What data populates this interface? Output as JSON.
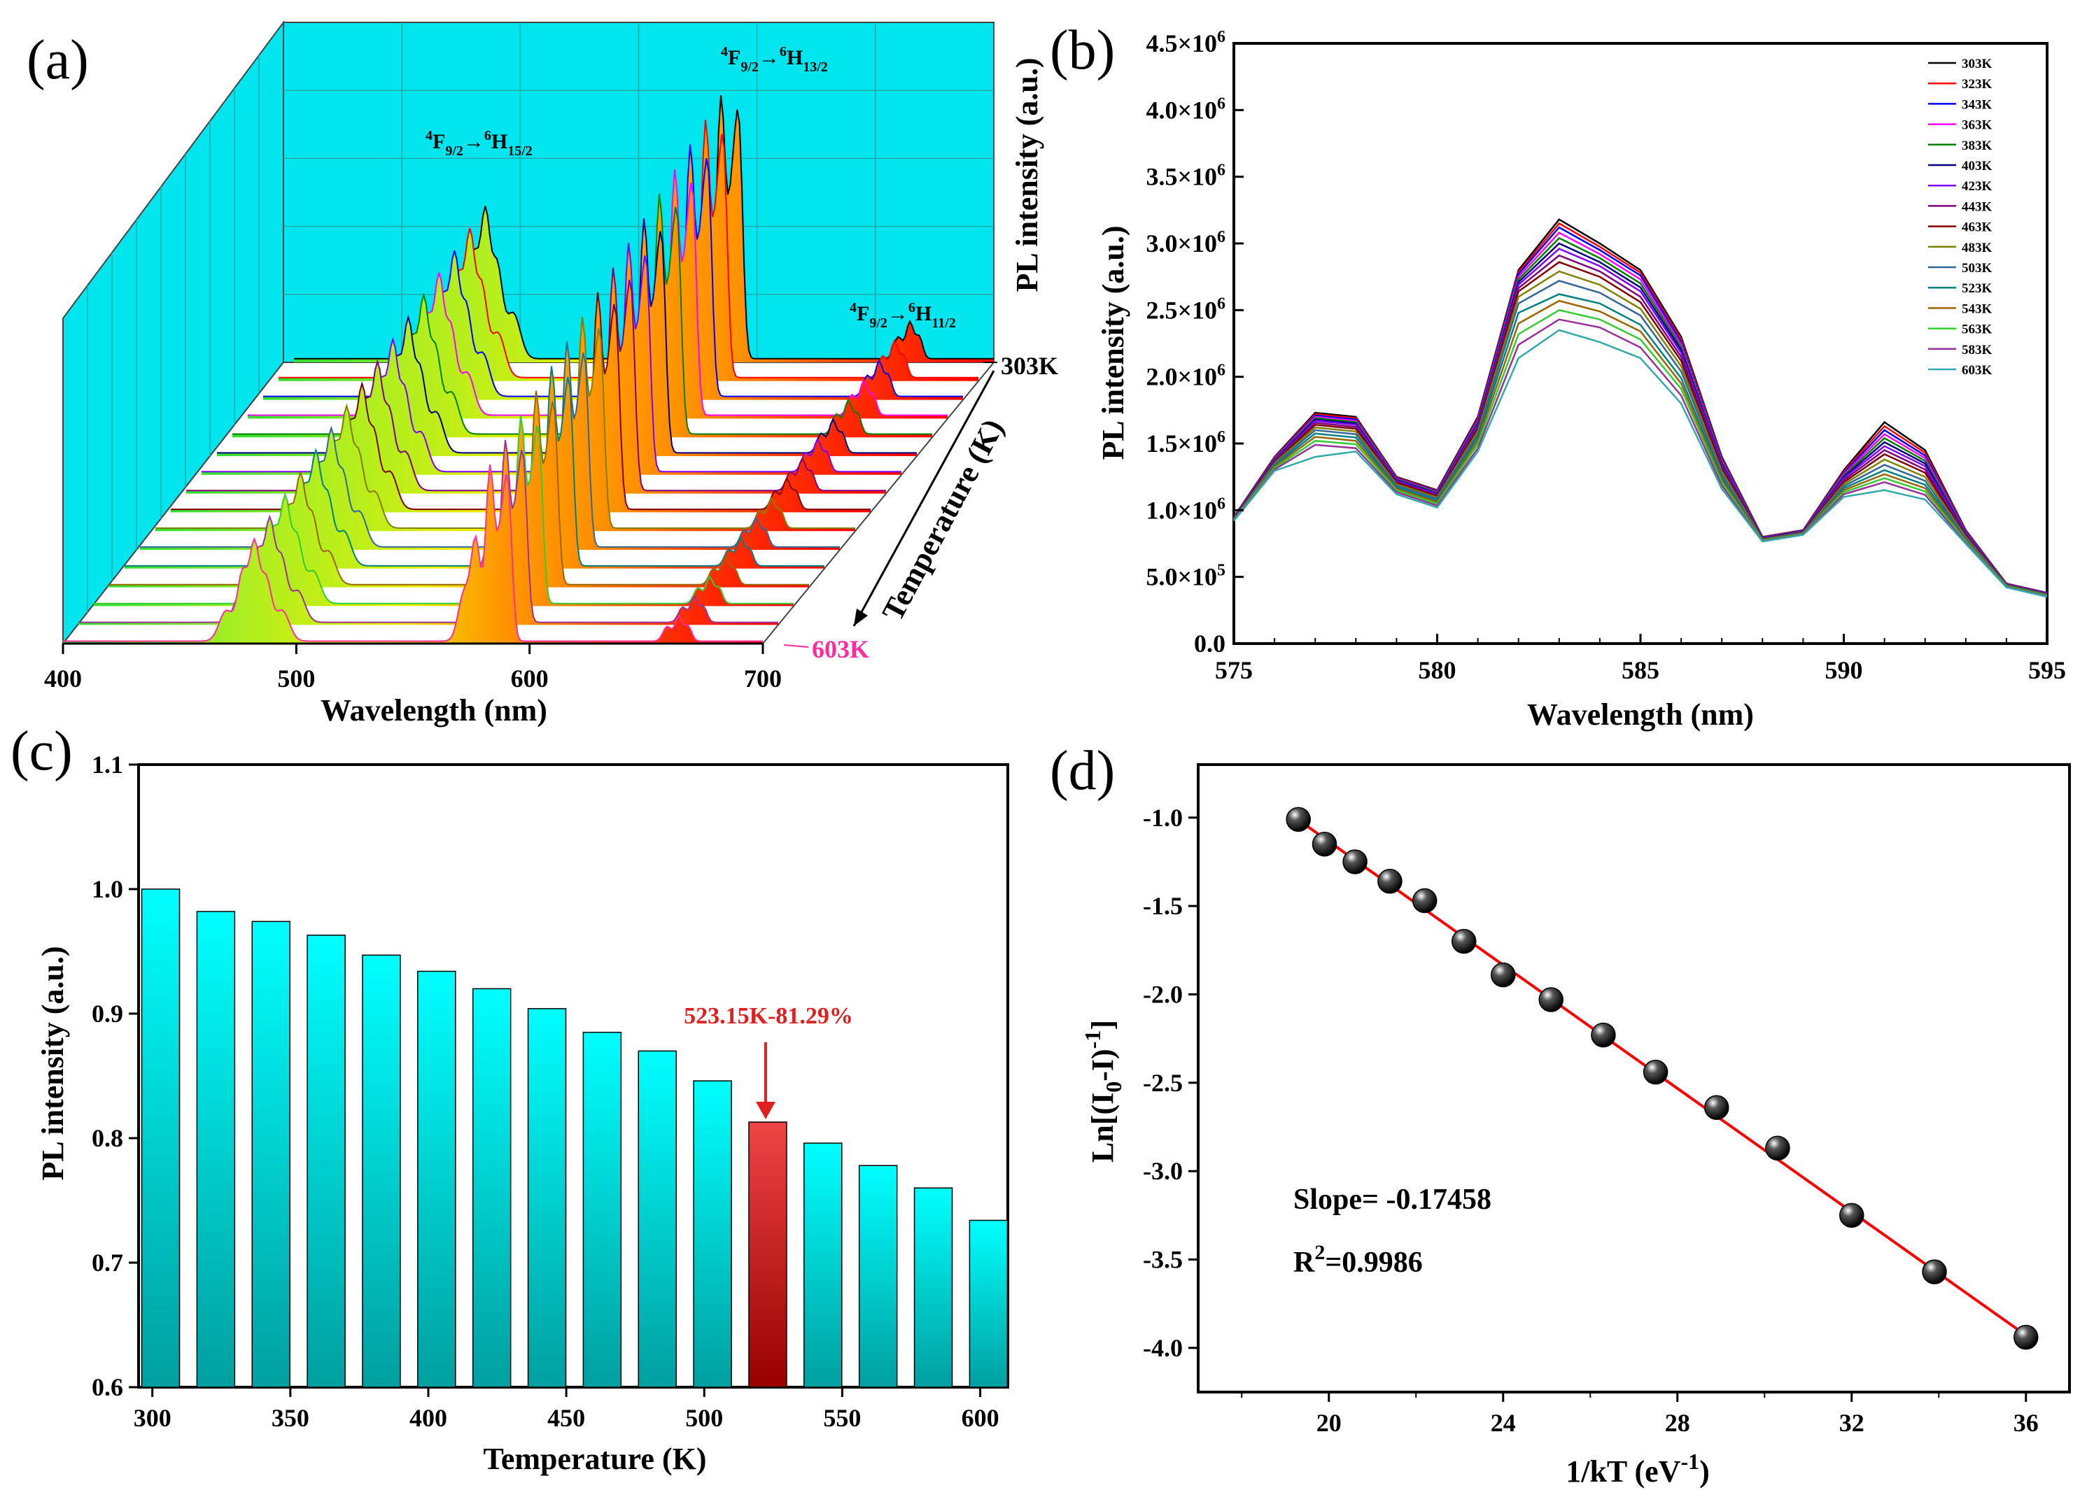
{
  "panels": {
    "a": {
      "label": "(a)"
    },
    "b": {
      "label": "(b)"
    },
    "c": {
      "label": "(c)"
    },
    "d": {
      "label": "(d)"
    }
  },
  "chart_data": [
    {
      "id": "a",
      "type": "line",
      "subtype": "3d-waterfall",
      "title": "",
      "xlabel": "Wavelength (nm)",
      "ylabel": "Temperature (K)",
      "zlabel": "PL intensity (a.u.)",
      "xlim": [
        400,
        700
      ],
      "xticks": [
        "400",
        "500",
        "600",
        "700"
      ],
      "temperatures": [
        303,
        323,
        343,
        363,
        383,
        403,
        423,
        443,
        463,
        483,
        503,
        523,
        543,
        563,
        583,
        603
      ],
      "series_labels": {
        "front": "603K",
        "back": "303K"
      },
      "peaks_nm": [
        482,
        588,
        664
      ],
      "annotations": [
        {
          "text": "4F9/2→6H15/2",
          "main": "F",
          "sup1": "4",
          "sub1": "9/2",
          "arrow": "→",
          "sup2": "6",
          "main2": "H",
          "sub2": "15/2"
        },
        {
          "text": "4F9/2→6H13/2",
          "main": "F",
          "sup1": "4",
          "sub1": "9/2",
          "arrow": "→",
          "sup2": "6",
          "main2": "H",
          "sub2": "13/2"
        },
        {
          "text": "4F9/2→6H11/2",
          "main": "F",
          "sup1": "4",
          "sub1": "9/2",
          "arrow": "→",
          "sup2": "6",
          "main2": "H",
          "sub2": "11/2"
        }
      ]
    },
    {
      "id": "b",
      "type": "line",
      "title": "",
      "xlabel": "Wavelength (nm)",
      "ylabel": "PL intensity (a.u.)",
      "xlim": [
        575,
        595
      ],
      "ylim": [
        0,
        4500000
      ],
      "xticks": [
        "575",
        "580",
        "585",
        "590",
        "595"
      ],
      "yticks": [
        {
          "mant": "0.0",
          "exp": ""
        },
        {
          "mant": "5.0×10",
          "exp": "5"
        },
        {
          "mant": "1.0×10",
          "exp": "6"
        },
        {
          "mant": "1.5×10",
          "exp": "6"
        },
        {
          "mant": "2.0×10",
          "exp": "6"
        },
        {
          "mant": "2.5×10",
          "exp": "6"
        },
        {
          "mant": "3.0×10",
          "exp": "6"
        },
        {
          "mant": "3.5×10",
          "exp": "6"
        },
        {
          "mant": "4.0×10",
          "exp": "6"
        },
        {
          "mant": "4.5×10",
          "exp": "6"
        }
      ],
      "x": [
        575,
        576,
        577,
        578,
        579,
        580,
        581,
        582,
        583,
        584,
        585,
        586,
        587,
        588,
        589,
        590,
        591,
        592,
        593,
        594,
        595
      ],
      "legend_position": "top-right",
      "series": [
        {
          "name": "303K",
          "color": "#000000",
          "values": [
            950000,
            1400000,
            1730000,
            1700000,
            1250000,
            1150000,
            1700000,
            2800000,
            3180000,
            3000000,
            2800000,
            2300000,
            1400000,
            800000,
            850000,
            1300000,
            1660000,
            1450000,
            850000,
            450000,
            380000
          ]
        },
        {
          "name": "323K",
          "color": "#ff0000",
          "values": [
            948000,
            1395000,
            1720000,
            1690000,
            1245000,
            1145000,
            1690000,
            2785000,
            3150000,
            2975000,
            2780000,
            2280000,
            1390000,
            798000,
            848000,
            1290000,
            1630000,
            1430000,
            845000,
            449000,
            379000
          ]
        },
        {
          "name": "343K",
          "color": "#0000ff",
          "values": [
            946000,
            1390000,
            1710000,
            1680000,
            1240000,
            1140000,
            1680000,
            2770000,
            3120000,
            2950000,
            2760000,
            2260000,
            1380000,
            796000,
            846000,
            1280000,
            1600000,
            1410000,
            840000,
            448000,
            378000
          ]
        },
        {
          "name": "363K",
          "color": "#ff00ff",
          "values": [
            944000,
            1385000,
            1700000,
            1670000,
            1235000,
            1135000,
            1670000,
            2750000,
            3080000,
            2920000,
            2730000,
            2240000,
            1370000,
            794000,
            844000,
            1270000,
            1570000,
            1390000,
            835000,
            447000,
            377000
          ]
        },
        {
          "name": "383K",
          "color": "#008000",
          "values": [
            942000,
            1380000,
            1690000,
            1660000,
            1230000,
            1130000,
            1660000,
            2730000,
            3040000,
            2890000,
            2700000,
            2220000,
            1360000,
            792000,
            842000,
            1260000,
            1540000,
            1370000,
            830000,
            446000,
            376000
          ]
        },
        {
          "name": "403K",
          "color": "#000080",
          "values": [
            940000,
            1375000,
            1680000,
            1650000,
            1225000,
            1125000,
            1650000,
            2710000,
            3000000,
            2860000,
            2670000,
            2200000,
            1350000,
            790000,
            840000,
            1250000,
            1510000,
            1350000,
            825000,
            445000,
            375000
          ]
        },
        {
          "name": "423K",
          "color": "#8000ff",
          "values": [
            938000,
            1370000,
            1670000,
            1640000,
            1220000,
            1120000,
            1640000,
            2690000,
            2960000,
            2830000,
            2640000,
            2180000,
            1340000,
            788000,
            838000,
            1240000,
            1480000,
            1330000,
            820000,
            444000,
            374000
          ]
        },
        {
          "name": "443K",
          "color": "#800080",
          "values": [
            936000,
            1365000,
            1655000,
            1625000,
            1212000,
            1112000,
            1625000,
            2665000,
            2910000,
            2790000,
            2600000,
            2150000,
            1325000,
            786000,
            836000,
            1225000,
            1450000,
            1305000,
            813000,
            442000,
            372000
          ]
        },
        {
          "name": "463K",
          "color": "#800000",
          "values": [
            934000,
            1360000,
            1640000,
            1610000,
            1205000,
            1105000,
            1610000,
            2640000,
            2860000,
            2750000,
            2560000,
            2120000,
            1310000,
            784000,
            834000,
            1210000,
            1420000,
            1280000,
            806000,
            440000,
            370000
          ]
        },
        {
          "name": "483K",
          "color": "#808000",
          "values": [
            932000,
            1352000,
            1620000,
            1590000,
            1195000,
            1095000,
            1590000,
            2600000,
            2790000,
            2690000,
            2510000,
            2080000,
            1290000,
            782000,
            832000,
            1195000,
            1380000,
            1250000,
            798000,
            438000,
            368000
          ]
        },
        {
          "name": "503K",
          "color": "#336699",
          "values": [
            930000,
            1345000,
            1600000,
            1570000,
            1185000,
            1085000,
            1570000,
            2550000,
            2720000,
            2630000,
            2460000,
            2040000,
            1270000,
            780000,
            830000,
            1180000,
            1340000,
            1220000,
            790000,
            436000,
            366000
          ]
        },
        {
          "name": "523K",
          "color": "#008080",
          "values": [
            928000,
            1335000,
            1575000,
            1545000,
            1172000,
            1072000,
            1545000,
            2480000,
            2620000,
            2550000,
            2390000,
            1990000,
            1245000,
            777000,
            827000,
            1165000,
            1300000,
            1190000,
            780000,
            433000,
            363000
          ]
        },
        {
          "name": "543K",
          "color": "#996600",
          "values": [
            926000,
            1325000,
            1550000,
            1520000,
            1160000,
            1060000,
            1520000,
            2400000,
            2570000,
            2490000,
            2340000,
            1950000,
            1225000,
            774000,
            824000,
            1150000,
            1270000,
            1165000,
            772000,
            430000,
            360000
          ]
        },
        {
          "name": "563K",
          "color": "#33cc33",
          "values": [
            924000,
            1315000,
            1520000,
            1495000,
            1148000,
            1048000,
            1495000,
            2320000,
            2500000,
            2430000,
            2280000,
            1910000,
            1205000,
            771000,
            821000,
            1135000,
            1240000,
            1140000,
            764000,
            427000,
            357000
          ]
        },
        {
          "name": "583K",
          "color": "#993399",
          "values": [
            922000,
            1305000,
            1490000,
            1465000,
            1135000,
            1035000,
            1465000,
            2240000,
            2430000,
            2370000,
            2220000,
            1860000,
            1185000,
            768000,
            818000,
            1120000,
            1210000,
            1115000,
            756000,
            424000,
            354000
          ]
        },
        {
          "name": "603K",
          "color": "#33aaaa",
          "values": [
            920000,
            1295000,
            1400000,
            1440000,
            1120000,
            1020000,
            1440000,
            2140000,
            2350000,
            2260000,
            2140000,
            1800000,
            1160000,
            765000,
            815000,
            1100000,
            1150000,
            1080000,
            748000,
            421000,
            351000
          ]
        }
      ]
    },
    {
      "id": "c",
      "type": "bar",
      "title": "",
      "xlabel": "Temperature (K)",
      "ylabel": "PL intensity (a.u.)",
      "xlim": [
        295,
        610
      ],
      "ylim": [
        0.6,
        1.1
      ],
      "xticks": [
        "300",
        "350",
        "400",
        "450",
        "500",
        "550",
        "600"
      ],
      "yticks": [
        "0.6",
        "0.7",
        "0.8",
        "0.9",
        "1.0",
        "1.1"
      ],
      "x": [
        303,
        323,
        343,
        363,
        383,
        403,
        423,
        443,
        463,
        483,
        503,
        523,
        543,
        563,
        583,
        603
      ],
      "values": [
        1.0,
        0.982,
        0.974,
        0.963,
        0.947,
        0.934,
        0.92,
        0.904,
        0.885,
        0.87,
        0.846,
        0.8129,
        0.796,
        0.778,
        0.76,
        0.734
      ],
      "bar_color": "#00e5e5",
      "highlight_index": 11,
      "highlight_color": "#e03030",
      "annotation": {
        "text": "523.15K-81.29%",
        "color": "#e02020"
      }
    },
    {
      "id": "d",
      "type": "scatter",
      "title": "",
      "xlabel": "1/kT (eV-1)",
      "xlabel_parts": {
        "main": "1/kT (eV",
        "sup": "-1",
        "end": ")"
      },
      "ylabel": "Ln[(I0-I)-1]",
      "ylabel_parts": {
        "a": "Ln[(I",
        "sub": "0",
        "b": "-I)",
        "sup": "-1",
        "c": "]"
      },
      "xlim": [
        17,
        37
      ],
      "ylim": [
        -4.25,
        -0.7
      ],
      "xticks": [
        "20",
        "24",
        "28",
        "32",
        "36"
      ],
      "yticks": [
        "-1.0",
        "-1.5",
        "-2.0",
        "-2.5",
        "-3.0",
        "-3.5",
        "-4.0"
      ],
      "x": [
        19.3,
        19.9,
        20.6,
        21.4,
        22.2,
        23.1,
        24.0,
        25.1,
        26.3,
        27.5,
        28.9,
        30.3,
        32.0,
        33.9,
        36.0
      ],
      "y": [
        -1.01,
        -1.15,
        -1.25,
        -1.36,
        -1.47,
        -1.7,
        -1.89,
        -2.03,
        -2.23,
        -2.44,
        -2.64,
        -2.87,
        -3.25,
        -3.57,
        -3.94
      ],
      "fit": {
        "slope": -0.17458,
        "intercept": 2.3562,
        "color": "#ff0000"
      },
      "annotations": {
        "slope_text": "Slope= -0.17458",
        "r2_prefix": "R",
        "r2_sup": "2",
        "r2_value": "=0.9986"
      }
    }
  ]
}
